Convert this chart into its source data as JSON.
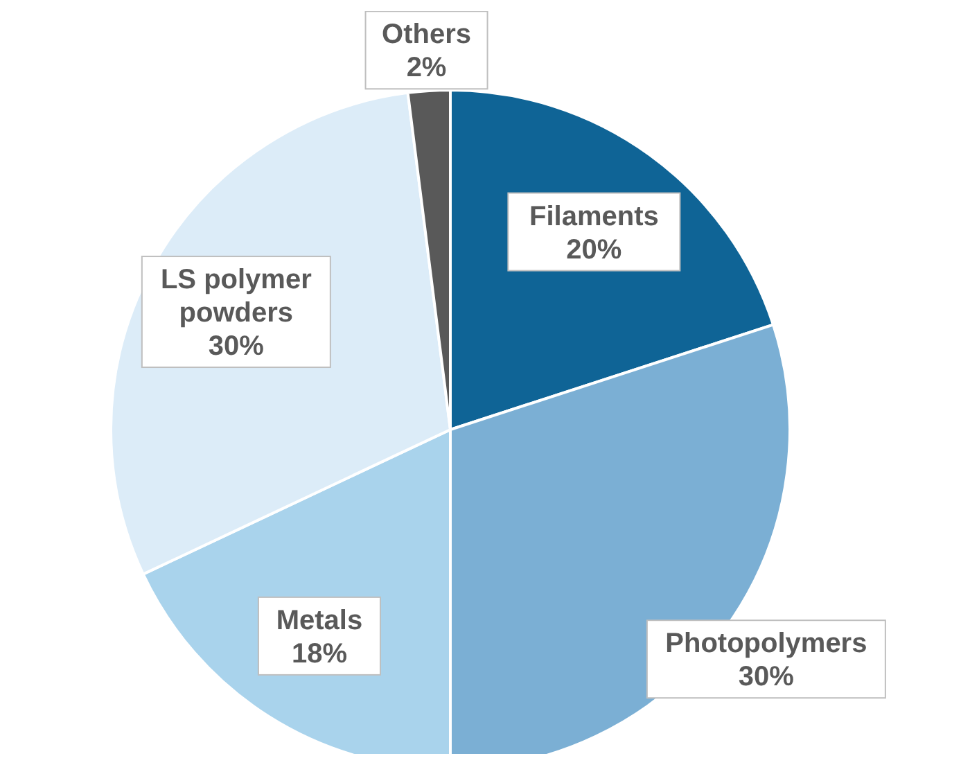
{
  "chart_data": {
    "type": "pie",
    "categories": [
      "Filaments",
      "Photopolymers",
      "Metals",
      "LS polymer powders",
      "Others"
    ],
    "values": [
      20,
      30,
      18,
      30,
      2
    ],
    "colors": [
      "#0f6496",
      "#7bafd4",
      "#a9d3ec",
      "#dcecf8",
      "#595959"
    ],
    "value_labels": [
      "20%",
      "30%",
      "18%",
      "30%",
      "2%"
    ],
    "legend": false
  }
}
